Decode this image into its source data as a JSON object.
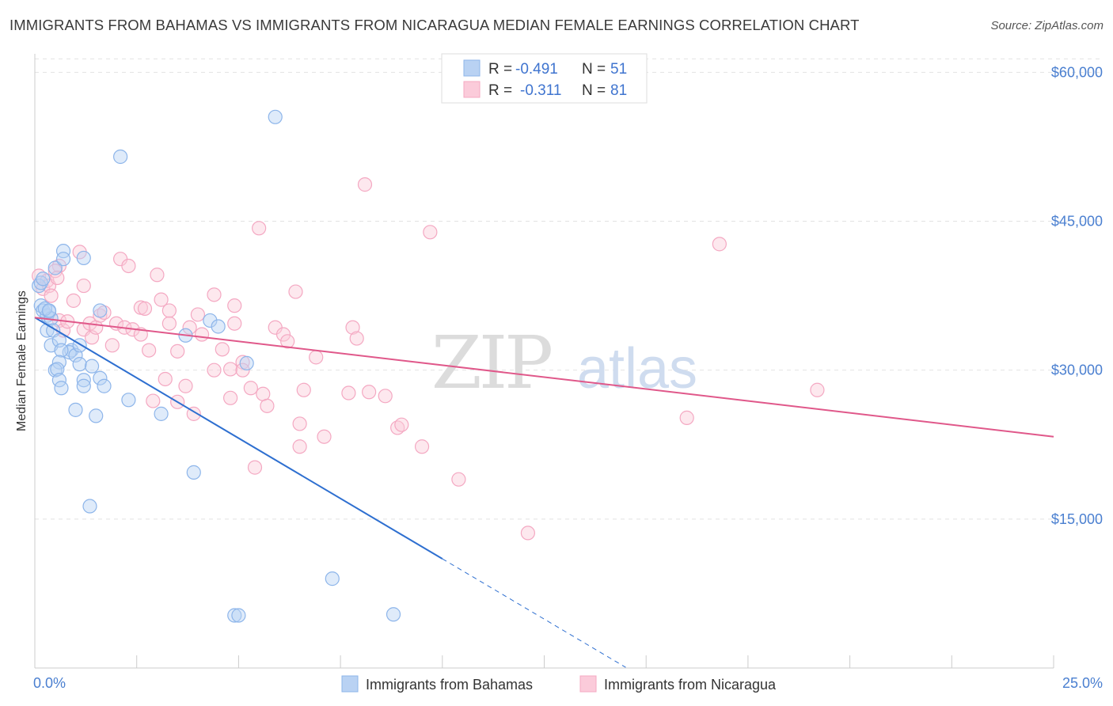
{
  "chart_data": {
    "type": "scatter",
    "title": "IMMIGRANTS FROM BAHAMAS VS IMMIGRANTS FROM NICARAGUA MEDIAN FEMALE EARNINGS CORRELATION CHART",
    "source": "Source: ZipAtlas.com",
    "ylabel": "Median Female Earnings",
    "xlim": [
      0,
      25
    ],
    "ylim": [
      0,
      62500
    ],
    "x_tick_labels": [
      "0.0%",
      "25.0%"
    ],
    "y_ticks": [
      {
        "value": 15000,
        "label": "$15,000"
      },
      {
        "value": 30000,
        "label": "$30,000"
      },
      {
        "value": 45000,
        "label": "$45,000"
      },
      {
        "value": 60000,
        "label": "$60,000"
      }
    ],
    "watermark": {
      "zip": "ZIP",
      "atlas": "atlas"
    },
    "legend": {
      "r_label": "R =",
      "n_label": "N =",
      "entries": [
        {
          "r": "-0.491",
          "n": "51"
        },
        {
          "r": "-0.311",
          "n": "81"
        }
      ]
    },
    "series": [
      {
        "name": "Immigrants from Bahamas",
        "color": "#8db5ea",
        "line_color": "#2e6fd0",
        "trend": {
          "x0": 0,
          "y0": 35300,
          "x1": 10,
          "y1": 11000,
          "dash_to_x": 14.5
        },
        "points": [
          [
            0.1,
            38500
          ],
          [
            0.15,
            38800
          ],
          [
            0.2,
            39200
          ],
          [
            0.15,
            36500
          ],
          [
            0.2,
            36000
          ],
          [
            0.3,
            35500
          ],
          [
            0.35,
            35900
          ],
          [
            0.4,
            35200
          ],
          [
            0.3,
            34000
          ],
          [
            0.45,
            34000
          ],
          [
            0.5,
            40300
          ],
          [
            0.7,
            42000
          ],
          [
            0.7,
            41200
          ],
          [
            1.2,
            41300
          ],
          [
            0.4,
            32500
          ],
          [
            0.6,
            33000
          ],
          [
            0.9,
            32000
          ],
          [
            0.85,
            31800
          ],
          [
            1.0,
            31500
          ],
          [
            1.1,
            32500
          ],
          [
            0.65,
            32000
          ],
          [
            0.6,
            30800
          ],
          [
            0.5,
            30000
          ],
          [
            0.55,
            30100
          ],
          [
            1.1,
            30600
          ],
          [
            1.4,
            30400
          ],
          [
            1.6,
            36000
          ],
          [
            0.6,
            29000
          ],
          [
            1.2,
            29000
          ],
          [
            1.6,
            29200
          ],
          [
            0.65,
            28200
          ],
          [
            1.2,
            28400
          ],
          [
            1.7,
            28400
          ],
          [
            1.0,
            26000
          ],
          [
            1.5,
            25400
          ],
          [
            2.3,
            27000
          ],
          [
            3.1,
            25600
          ],
          [
            3.7,
            33500
          ],
          [
            4.3,
            35000
          ],
          [
            4.5,
            34400
          ],
          [
            5.2,
            30700
          ],
          [
            2.1,
            51500
          ],
          [
            5.9,
            55500
          ],
          [
            3.9,
            19700
          ],
          [
            1.35,
            16300
          ],
          [
            7.3,
            9000
          ],
          [
            4.9,
            5300
          ],
          [
            5.0,
            5300
          ],
          [
            8.8,
            5400
          ],
          [
            0.25,
            36200
          ],
          [
            0.35,
            36000
          ]
        ]
      },
      {
        "name": "Immigrants from Nicaragua",
        "color": "#f4a8c2",
        "line_color": "#e0588a",
        "trend": {
          "x0": 0,
          "y0": 35300,
          "x1": 25,
          "y1": 23300
        },
        "points": [
          [
            0.1,
            39500
          ],
          [
            0.2,
            38200
          ],
          [
            0.3,
            39000
          ],
          [
            0.35,
            38500
          ],
          [
            0.4,
            37500
          ],
          [
            0.6,
            40500
          ],
          [
            0.5,
            40000
          ],
          [
            0.55,
            39300
          ],
          [
            0.6,
            35000
          ],
          [
            0.7,
            34000
          ],
          [
            0.8,
            34900
          ],
          [
            0.95,
            37000
          ],
          [
            1.2,
            38500
          ],
          [
            1.1,
            41900
          ],
          [
            1.2,
            34100
          ],
          [
            1.35,
            34700
          ],
          [
            1.4,
            33300
          ],
          [
            1.5,
            34300
          ],
          [
            1.6,
            35500
          ],
          [
            1.7,
            35800
          ],
          [
            1.9,
            32500
          ],
          [
            2.0,
            34700
          ],
          [
            2.1,
            41200
          ],
          [
            2.2,
            34300
          ],
          [
            2.3,
            40500
          ],
          [
            2.4,
            34100
          ],
          [
            2.6,
            33600
          ],
          [
            2.6,
            36300
          ],
          [
            2.7,
            36200
          ],
          [
            2.8,
            32000
          ],
          [
            2.9,
            26900
          ],
          [
            3.0,
            39600
          ],
          [
            3.1,
            37100
          ],
          [
            3.2,
            29100
          ],
          [
            3.3,
            34700
          ],
          [
            3.3,
            36000
          ],
          [
            3.5,
            31900
          ],
          [
            3.5,
            26800
          ],
          [
            3.7,
            28400
          ],
          [
            3.8,
            34300
          ],
          [
            3.9,
            25600
          ],
          [
            4.0,
            35600
          ],
          [
            4.1,
            33600
          ],
          [
            4.4,
            37600
          ],
          [
            4.4,
            30000
          ],
          [
            4.6,
            32100
          ],
          [
            4.8,
            30100
          ],
          [
            4.8,
            27200
          ],
          [
            4.9,
            36500
          ],
          [
            4.9,
            34700
          ],
          [
            5.1,
            30800
          ],
          [
            5.1,
            30000
          ],
          [
            5.3,
            28200
          ],
          [
            5.4,
            20200
          ],
          [
            5.5,
            44300
          ],
          [
            5.6,
            27600
          ],
          [
            5.7,
            26400
          ],
          [
            5.9,
            34300
          ],
          [
            6.1,
            33600
          ],
          [
            6.2,
            32900
          ],
          [
            6.4,
            37900
          ],
          [
            6.5,
            24600
          ],
          [
            6.5,
            22300
          ],
          [
            6.6,
            28000
          ],
          [
            6.9,
            31300
          ],
          [
            7.1,
            23300
          ],
          [
            7.8,
            34300
          ],
          [
            7.9,
            33200
          ],
          [
            7.7,
            27700
          ],
          [
            8.1,
            48700
          ],
          [
            8.2,
            27800
          ],
          [
            8.6,
            27400
          ],
          [
            8.9,
            24200
          ],
          [
            9.0,
            24500
          ],
          [
            9.5,
            22300
          ],
          [
            9.7,
            43900
          ],
          [
            10.4,
            19000
          ],
          [
            12.1,
            13600
          ],
          [
            16.0,
            25200
          ],
          [
            16.8,
            42700
          ],
          [
            19.2,
            28000
          ]
        ]
      }
    ]
  },
  "bottom_legend": [
    "Immigrants from Bahamas",
    "Immigrants from Nicaragua"
  ]
}
